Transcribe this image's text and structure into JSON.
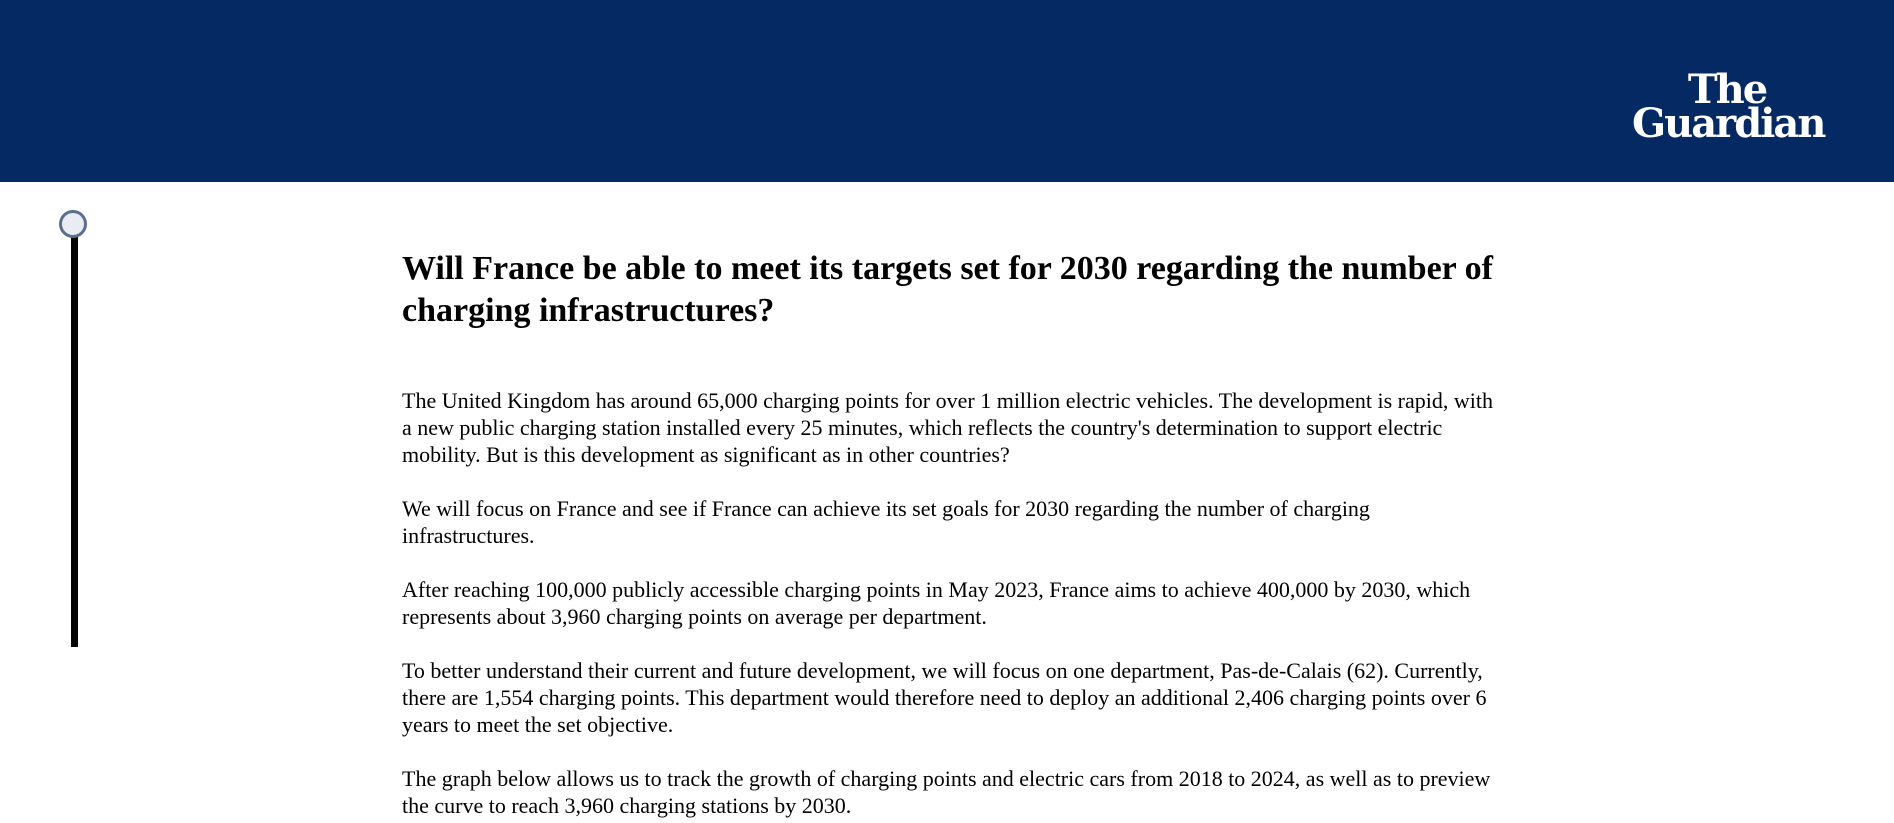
{
  "header": {
    "logo_line1": "The",
    "logo_line2": "Guardian",
    "background": "#052962"
  },
  "progress": {
    "value": 0
  },
  "article": {
    "title": "Will France be able to meet its targets set for 2030 regarding the number of charging infrastructures?",
    "paragraphs": [
      "The United Kingdom has around 65,000 charging points for over 1 million electric vehicles. The development is rapid, with a new public charging station installed every 25 minutes, which reflects the country's determination to support electric mobility. But is this development as significant as in other countries?",
      "We will focus on France and see if France can achieve its set goals for 2030 regarding the number of charging infrastructures.",
      "After reaching 100,000 publicly accessible charging points in May 2023, France aims to achieve 400,000 by 2030, which represents about 3,960 charging points on average per department.",
      "To better understand their current and future development, we will focus on one department, Pas-de-Calais (62). Currently, there are 1,554 charging points. This department would therefore need to deploy an additional 2,406 charging points over 6 years to meet the set objective.",
      "The graph below allows us to track the growth of charging points and electric cars from 2018 to 2024, as well as to preview the curve to reach 3,960 charging stations by 2030."
    ]
  }
}
